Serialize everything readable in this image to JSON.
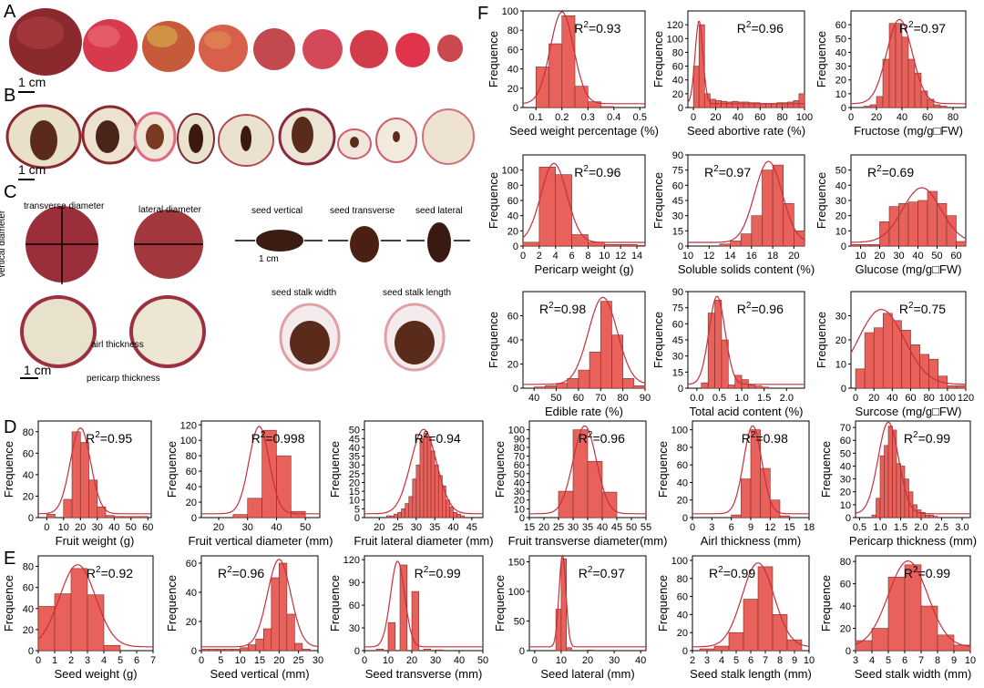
{
  "panels": {
    "A": "A",
    "B": "B",
    "C": "C",
    "D": "D",
    "E": "E",
    "F": "F"
  },
  "scale_label": "1 cm",
  "scale_label_small": "1 cm",
  "annotations": {
    "transverse": "transverse diameter",
    "lateral": "lateral diameter",
    "vertical": "vertical diameter",
    "seed_vertical": "seed vertical",
    "seed_transverse": "seed transverse",
    "seed_lateral": "seed lateral",
    "seed_stalk_width": "seed stalk width",
    "seed_stalk_length": "seed stalk length",
    "airl": "airl thickness",
    "pericarp": "pericarp thickness"
  },
  "ylabel": "Frequence",
  "chart_data": [
    {
      "id": "F1",
      "type": "bar",
      "xlabel": "Seed weight percentage (%)",
      "r2": "=0.93",
      "xticks": [
        "0.1",
        "0.2",
        "0.3",
        "0.4",
        "0.5"
      ],
      "xrange": [
        0.05,
        0.52
      ],
      "ylim": [
        0,
        100
      ],
      "yticks": [
        "0",
        "20",
        "40",
        "60",
        "80",
        "100"
      ],
      "bins": [
        0.1,
        0.15,
        0.2,
        0.25,
        0.3,
        0.35
      ],
      "values": [
        42,
        66,
        95,
        22,
        6,
        1
      ],
      "bw": 0.05,
      "curve": {
        "mu": 0.2,
        "sd": 0.045
      },
      "r2pos": "tr"
    },
    {
      "id": "F2",
      "type": "bar",
      "xlabel": "Seed abortive rate (%)",
      "r2": "=0.96",
      "xticks": [
        "0",
        "20",
        "40",
        "60",
        "80",
        "100"
      ],
      "xrange": [
        -5,
        100
      ],
      "ylim": [
        0,
        140
      ],
      "yticks": [
        "0",
        "20",
        "40",
        "60",
        "80",
        "100",
        "120"
      ],
      "bins": [
        0,
        5,
        10,
        15,
        20,
        25,
        30,
        35,
        40,
        45,
        50,
        55,
        60,
        65,
        70,
        75,
        80,
        85,
        90,
        95
      ],
      "values": [
        60,
        120,
        20,
        12,
        10,
        9,
        8,
        9,
        8,
        8,
        7,
        7,
        6,
        6,
        6,
        7,
        7,
        8,
        10,
        20
      ],
      "bw": 5,
      "curve": {
        "mu": 5,
        "sd": 3.5
      },
      "r2pos": "tr"
    },
    {
      "id": "F3",
      "type": "bar",
      "xlabel": "Fructose (mg/g□FW)",
      "r2": "=0.97",
      "xticks": [
        "0",
        "20",
        "40",
        "60",
        "80"
      ],
      "xrange": [
        0,
        90
      ],
      "ylim": [
        0,
        70
      ],
      "yticks": [
        "0",
        "10",
        "20",
        "30",
        "40",
        "50",
        "60"
      ],
      "bins": [
        0,
        5,
        10,
        15,
        20,
        25,
        30,
        35,
        40,
        45,
        50,
        55,
        60,
        65,
        70,
        75,
        80,
        85
      ],
      "values": [
        0,
        0,
        1,
        2,
        8,
        35,
        61,
        61,
        51,
        35,
        25,
        12,
        6,
        2,
        1,
        0,
        0,
        0
      ],
      "bw": 5,
      "curve": {
        "mu": 38,
        "sd": 10
      },
      "r2pos": "tr"
    },
    {
      "id": "F4",
      "type": "bar",
      "xlabel": "Pericarp weight (g)",
      "r2": "=0.96",
      "xticks": [
        "0",
        "2",
        "4",
        "6",
        "8",
        "10",
        "12",
        "14"
      ],
      "xrange": [
        0,
        15
      ],
      "ylim": [
        0,
        120
      ],
      "yticks": [
        "0",
        "20",
        "40",
        "60",
        "80",
        "100"
      ],
      "bins": [
        0,
        2,
        4,
        6,
        8,
        10,
        12,
        14
      ],
      "values": [
        5,
        104,
        94,
        15,
        5,
        2,
        2,
        1
      ],
      "bw": 2,
      "curve": {
        "mu": 3.8,
        "sd": 1.6
      },
      "r2pos": "tr"
    },
    {
      "id": "F5",
      "type": "bar",
      "xlabel": "Soluble solids content (%)",
      "r2": "=0.97",
      "xticks": [
        "10",
        "12",
        "14",
        "16",
        "18",
        "20"
      ],
      "xrange": [
        10,
        21
      ],
      "ylim": [
        0,
        90
      ],
      "yticks": [
        "0",
        "15",
        "30",
        "45",
        "60",
        "75",
        "90"
      ],
      "bins": [
        10,
        11,
        12,
        13,
        14,
        15,
        16,
        17,
        18,
        19,
        20
      ],
      "values": [
        0,
        0,
        0,
        2,
        5,
        12,
        30,
        75,
        80,
        42,
        15
      ],
      "bw": 1,
      "curve": {
        "mu": 17.6,
        "sd": 1.3
      },
      "r2pos": "tl"
    },
    {
      "id": "F6",
      "type": "bar",
      "xlabel": "Glucose (mg/g□FW)",
      "r2": "=0.69",
      "xticks": [
        "10",
        "20",
        "30",
        "40",
        "50",
        "60"
      ],
      "xrange": [
        5,
        65
      ],
      "ylim": [
        0,
        60
      ],
      "yticks": [
        "0",
        "10",
        "20",
        "30",
        "40",
        "50"
      ],
      "bins": [
        5,
        10,
        15,
        20,
        25,
        30,
        35,
        40,
        45,
        50,
        55,
        60
      ],
      "values": [
        1,
        1,
        1,
        16,
        26,
        28,
        29,
        30,
        36,
        28,
        20,
        3
      ],
      "bw": 5,
      "curve": {
        "mu": 42,
        "sd": 10
      },
      "r2pos": "tl"
    },
    {
      "id": "F7",
      "type": "bar",
      "xlabel": "Edible rate (%)",
      "r2": "=0.98",
      "xticks": [
        "40",
        "50",
        "60",
        "70",
        "80",
        "90"
      ],
      "xrange": [
        35,
        90
      ],
      "ylim": [
        0,
        80
      ],
      "yticks": [
        "0",
        "20",
        "40",
        "60"
      ],
      "bins": [
        40,
        45,
        50,
        55,
        60,
        65,
        70,
        75,
        80,
        85
      ],
      "values": [
        1,
        2,
        4,
        8,
        15,
        30,
        72,
        44,
        8,
        2
      ],
      "bw": 5,
      "curve": {
        "mu": 71,
        "sd": 6.5
      },
      "r2pos": "tl"
    },
    {
      "id": "F8",
      "type": "bar",
      "xlabel": "Total acid content (%)",
      "r2": "=0.96",
      "xticks": [
        "0.0",
        "0.5",
        "1.0",
        "1.5",
        "2.0"
      ],
      "xrange": [
        -0.2,
        2.4
      ],
      "ylim": [
        0,
        90
      ],
      "yticks": [
        "0",
        "15",
        "30",
        "45",
        "60",
        "75",
        "90"
      ],
      "bins": [
        0.1,
        0.25,
        0.4,
        0.55,
        0.7,
        0.85,
        1.0,
        1.15,
        1.3,
        1.45,
        1.6,
        1.75,
        1.9
      ],
      "values": [
        5,
        70,
        82,
        45,
        3,
        12,
        8,
        3,
        2,
        1,
        0,
        0,
        0
      ],
      "bw": 0.15,
      "curve": {
        "mu": 0.45,
        "sd": 0.18
      },
      "r2pos": "tr"
    },
    {
      "id": "F9",
      "type": "bar",
      "xlabel": "Surcose (mg/g□FW)",
      "r2": "=0.75",
      "xticks": [
        "0",
        "20",
        "40",
        "60",
        "80",
        "100",
        "120"
      ],
      "xrange": [
        -5,
        120
      ],
      "ylim": [
        0,
        40
      ],
      "yticks": [
        "0",
        "10",
        "20",
        "30"
      ],
      "bins": [
        0,
        10,
        20,
        30,
        40,
        50,
        60,
        70,
        80,
        90,
        100,
        110
      ],
      "values": [
        8,
        23,
        25,
        31,
        28,
        24,
        18,
        14,
        12,
        5,
        1,
        1
      ],
      "bw": 10,
      "curve": {
        "mu": 28,
        "sd": 25
      },
      "r2pos": "tr"
    },
    {
      "id": "D1",
      "type": "bar",
      "xlabel": "Fruit weight (g)",
      "r2": "=0.95",
      "xticks": [
        "0",
        "10",
        "20",
        "30",
        "40",
        "50",
        "60"
      ],
      "xrange": [
        -5,
        62
      ],
      "ylim": [
        0,
        90
      ],
      "yticks": [
        "0",
        "20",
        "40",
        "60",
        "80"
      ],
      "bins": [
        0,
        10,
        15,
        20,
        25,
        30,
        35,
        40,
        45,
        50,
        55
      ],
      "values": [
        3,
        17,
        80,
        70,
        35,
        10,
        2,
        1,
        1,
        1,
        1
      ],
      "bw": 5,
      "curve": {
        "mu": 20,
        "sd": 6
      },
      "r2pos": "tr"
    },
    {
      "id": "D2",
      "type": "bar",
      "xlabel": "Fruit vertical diameter (mm)",
      "r2": "=0.998",
      "xticks": [
        "20",
        "30",
        "40",
        "50"
      ],
      "xrange": [
        14,
        55
      ],
      "ylim": [
        0,
        125
      ],
      "yticks": [
        "0",
        "20",
        "40",
        "60",
        "80",
        "100",
        "120"
      ],
      "bins": [
        20,
        25,
        30,
        35,
        40,
        45,
        50
      ],
      "values": [
        0,
        4,
        25,
        113,
        80,
        8,
        0
      ],
      "bw": 5,
      "curve": {
        "mu": 34,
        "sd": 3.5
      },
      "r2pos": "tr"
    },
    {
      "id": "D3",
      "type": "bar",
      "xlabel": "Fruit lateral diameter (mm)",
      "r2": "=0.94",
      "xticks": [
        "20",
        "25",
        "30",
        "35",
        "40",
        "45"
      ],
      "xrange": [
        16,
        48
      ],
      "ylim": [
        0,
        55
      ],
      "yticks": [
        "0",
        "5",
        "10",
        "15",
        "20",
        "25",
        "30",
        "35",
        "40",
        "45",
        "50"
      ],
      "bins": [
        22,
        23,
        24,
        25,
        26,
        27,
        28,
        29,
        30,
        31,
        32,
        33,
        34,
        35,
        36,
        37,
        38,
        39,
        40,
        41,
        42
      ],
      "values": [
        1,
        1,
        2,
        3,
        5,
        8,
        12,
        22,
        30,
        45,
        48,
        46,
        38,
        30,
        24,
        18,
        10,
        6,
        3,
        2,
        1
      ],
      "bw": 1,
      "curve": {
        "mu": 32,
        "sd": 3.5
      },
      "r2pos": "tr"
    },
    {
      "id": "D4",
      "type": "bar",
      "xlabel": "Fruit transverse diameter(mm)",
      "r2": "=0.96",
      "xticks": [
        "15",
        "20",
        "25",
        "30",
        "35",
        "40",
        "45",
        "50",
        "55"
      ],
      "xrange": [
        15,
        55
      ],
      "ylim": [
        0,
        110
      ],
      "yticks": [
        "0",
        "10",
        "20",
        "30",
        "40",
        "50",
        "60",
        "70",
        "80",
        "90",
        "100"
      ],
      "bins": [
        25,
        30,
        35,
        40,
        45
      ],
      "values": [
        30,
        100,
        64,
        29,
        0
      ],
      "bw": 5,
      "curve": {
        "mu": 34,
        "sd": 4
      },
      "r2pos": "tr"
    },
    {
      "id": "D5",
      "type": "bar",
      "xlabel": "Airl thickness (mm)",
      "r2": "=0.98",
      "xticks": [
        "0",
        "3",
        "6",
        "9",
        "12",
        "15",
        "18"
      ],
      "xrange": [
        0,
        18
      ],
      "ylim": [
        0,
        110
      ],
      "yticks": [
        "0",
        "20",
        "40",
        "60",
        "80",
        "100"
      ],
      "bins": [
        6,
        7.5,
        9,
        10.5,
        12,
        13.5
      ],
      "values": [
        3,
        44,
        100,
        56,
        20,
        2
      ],
      "bw": 1.5,
      "curve": {
        "mu": 9.3,
        "sd": 1.4
      },
      "r2pos": "tr"
    },
    {
      "id": "D6",
      "type": "bar",
      "xlabel": "Pericarp thickness (mm)",
      "r2": "=0.99",
      "xticks": [
        "0.5",
        "1.0",
        "1.5",
        "2.0",
        "2.5",
        "3.0"
      ],
      "xrange": [
        0.4,
        3.2
      ],
      "ylim": [
        0,
        75
      ],
      "yticks": [
        "0",
        "10",
        "20",
        "30",
        "40",
        "50",
        "60",
        "70"
      ],
      "bins": [
        0.8,
        0.9,
        1.0,
        1.1,
        1.2,
        1.3,
        1.4,
        1.5,
        1.6,
        1.7,
        1.8,
        1.9,
        2.0,
        2.1,
        2.2,
        2.3
      ],
      "values": [
        2,
        15,
        48,
        56,
        71,
        68,
        42,
        40,
        30,
        20,
        10,
        6,
        4,
        2,
        2,
        1
      ],
      "bw": 0.1,
      "curve": {
        "mu": 1.2,
        "sd": 0.25
      },
      "r2pos": "tr"
    },
    {
      "id": "E1",
      "type": "bar",
      "xlabel": "Seed weight (g)",
      "r2": "=0.92",
      "xticks": [
        "0",
        "1",
        "2",
        "3",
        "4",
        "5",
        "6",
        "7"
      ],
      "xrange": [
        0,
        7
      ],
      "ylim": [
        0,
        90
      ],
      "yticks": [
        "0",
        "20",
        "40",
        "60",
        "80"
      ],
      "bins": [
        0,
        1,
        2,
        3,
        4
      ],
      "values": [
        42,
        54,
        78,
        53,
        5
      ],
      "bw": 1,
      "curve": {
        "mu": 2.4,
        "sd": 1.1
      },
      "r2pos": "tr"
    },
    {
      "id": "E2",
      "type": "bar",
      "xlabel": "Seed vertical (mm)",
      "r2": "=0.96",
      "xticks": [
        "0",
        "5",
        "10",
        "15",
        "20",
        "25",
        "30"
      ],
      "xrange": [
        0,
        30
      ],
      "ylim": [
        0,
        65
      ],
      "yticks": [
        "0",
        "20",
        "40",
        "60"
      ],
      "bins": [
        0,
        2,
        4,
        6,
        8,
        10,
        12,
        14,
        16,
        18,
        20,
        22,
        24,
        26
      ],
      "values": [
        1,
        1,
        1,
        1,
        1,
        2,
        4,
        8,
        15,
        50,
        60,
        25,
        5,
        1
      ],
      "bw": 2,
      "curve": {
        "mu": 20,
        "sd": 3
      },
      "r2pos": "tl"
    },
    {
      "id": "E3",
      "type": "bar",
      "xlabel": "Seed transverse (mm)",
      "r2": "=0.99",
      "xticks": [
        "0",
        "10",
        "20",
        "30",
        "40",
        "50"
      ],
      "xrange": [
        0,
        50
      ],
      "ylim": [
        0,
        125
      ],
      "yticks": [
        "0",
        "30",
        "60",
        "90",
        "120"
      ],
      "bins": [
        5,
        10,
        15,
        20,
        25,
        30,
        40
      ],
      "values": [
        2,
        37,
        113,
        78,
        2,
        1,
        0
      ],
      "bw": 3,
      "curve": {
        "mu": 14,
        "sd": 3
      },
      "r2pos": "tr"
    },
    {
      "id": "E4",
      "type": "bar",
      "xlabel": "Seed lateral (mm)",
      "r2": "=0.97",
      "xticks": [
        "0",
        "10",
        "20",
        "30",
        "40"
      ],
      "xrange": [
        -2,
        42
      ],
      "ylim": [
        0,
        160
      ],
      "yticks": [
        "0",
        "50",
        "100",
        "150"
      ],
      "bins": [
        8,
        10,
        12,
        20,
        30
      ],
      "values": [
        70,
        155,
        5,
        1,
        0
      ],
      "bw": 2,
      "curve": {
        "mu": 10.5,
        "sd": 1.3
      },
      "r2pos": "tr"
    },
    {
      "id": "E5",
      "type": "bar",
      "xlabel": "Seed stalk length (mm)",
      "r2": "=0.99",
      "xticks": [
        "2",
        "3",
        "4",
        "5",
        "6",
        "7",
        "8",
        "9",
        "10"
      ],
      "xrange": [
        2,
        10
      ],
      "ylim": [
        0,
        105
      ],
      "yticks": [
        "0",
        "20",
        "40",
        "60",
        "80",
        "100"
      ],
      "bins": [
        2.5,
        3.5,
        4.5,
        5.5,
        6.5,
        7.5,
        8.5
      ],
      "values": [
        2,
        5,
        20,
        57,
        93,
        40,
        12
      ],
      "bw": 1,
      "curve": {
        "mu": 6.5,
        "sd": 1.1
      },
      "r2pos": "tl"
    },
    {
      "id": "E6",
      "type": "bar",
      "xlabel": "Seed stalk width (mm)",
      "r2": "=0.99",
      "xticks": [
        "3",
        "4",
        "5",
        "6",
        "7",
        "8",
        "9",
        "10"
      ],
      "xrange": [
        3,
        10
      ],
      "ylim": [
        0,
        85
      ],
      "yticks": [
        "0",
        "20",
        "40",
        "60",
        "80"
      ],
      "bins": [
        3,
        4,
        5,
        6,
        7,
        8,
        9
      ],
      "values": [
        9,
        20,
        66,
        77,
        40,
        14,
        5
      ],
      "bw": 1,
      "curve": {
        "mu": 6.2,
        "sd": 1.2
      },
      "r2pos": "tr"
    }
  ],
  "colors": {
    "bar": "#e8615a",
    "bar_stroke": "#7a2d2a",
    "curve": "#c7303a"
  }
}
